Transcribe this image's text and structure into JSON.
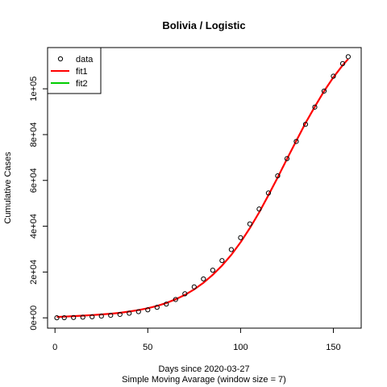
{
  "chart_data": {
    "type": "scatter",
    "title": "Bolivia / Logistic",
    "xlabel": "Days since 2020-03-27",
    "sublabel": "Simple Moving Avarage (window size = 7)",
    "ylabel": "Cumulative Cases",
    "xlim": [
      -4,
      165
    ],
    "ylim": [
      -4500,
      118000
    ],
    "xticks": [
      0,
      50,
      100,
      150
    ],
    "xtick_labels": [
      "0",
      "50",
      "100",
      "150"
    ],
    "yticks": [
      0,
      20000,
      40000,
      60000,
      80000,
      100000
    ],
    "ytick_labels": [
      "0e+00",
      "2e+04",
      "4e+04",
      "6e+04",
      "8e+04",
      "1e+05"
    ],
    "legend": {
      "position": "top-left",
      "items": [
        {
          "label": "data",
          "kind": "point"
        },
        {
          "label": "fit1",
          "kind": "line",
          "color": "#ff0000"
        },
        {
          "label": "fit2",
          "kind": "line",
          "color": "#00cd00"
        }
      ]
    },
    "series": [
      {
        "name": "data",
        "x": [
          1,
          5,
          10,
          15,
          20,
          25,
          30,
          35,
          40,
          45,
          50,
          55,
          60,
          65,
          70,
          75,
          80,
          85,
          90,
          95,
          100,
          105,
          110,
          115,
          120,
          125,
          130,
          135,
          140,
          145,
          150,
          155,
          158
        ],
        "y": [
          20,
          60,
          150,
          280,
          450,
          750,
          1100,
          1500,
          2000,
          2700,
          3500,
          4600,
          6000,
          8000,
          10500,
          13500,
          17000,
          20800,
          25000,
          29800,
          35000,
          41000,
          47500,
          54500,
          62000,
          69500,
          77000,
          84500,
          92000,
          99000,
          105500,
          111000,
          114000
        ]
      },
      {
        "name": "fit1",
        "x": [
          1,
          5,
          10,
          15,
          20,
          25,
          30,
          35,
          40,
          45,
          50,
          55,
          60,
          65,
          70,
          75,
          80,
          85,
          90,
          95,
          100,
          105,
          110,
          115,
          120,
          125,
          130,
          135,
          140,
          145,
          150,
          155,
          158
        ],
        "y": [
          400,
          550,
          750,
          950,
          1200,
          1500,
          1800,
          2200,
          2750,
          3400,
          4200,
          5200,
          6500,
          8100,
          10000,
          12400,
          15300,
          18800,
          22800,
          27500,
          33000,
          39200,
          46000,
          53500,
          61300,
          69300,
          77200,
          85000,
          92200,
          99000,
          105000,
          110300,
          113000
        ]
      },
      {
        "name": "fit2",
        "x": [],
        "y": []
      }
    ]
  }
}
